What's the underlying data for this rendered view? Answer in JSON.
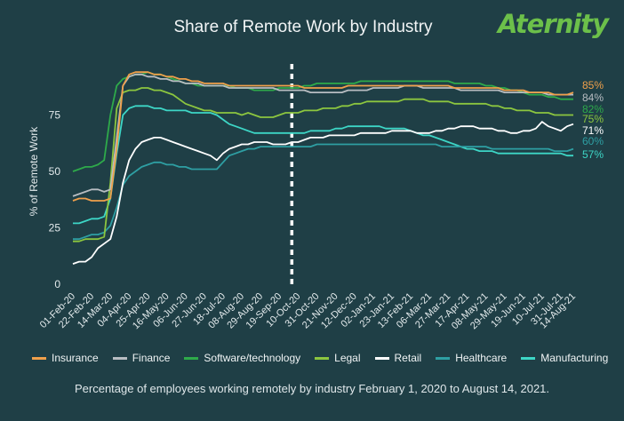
{
  "header": {
    "title": "Share of Remote Work by Industry",
    "brand": "Aternity"
  },
  "caption": "Percentage of employees working remotely by industry February 1, 2020 to August 14, 2021.",
  "chart_data": {
    "type": "line",
    "title": "Share of Remote Work by Industry",
    "ylabel": "% of Remote Work",
    "xlabel": "",
    "ylim": [
      0,
      100
    ],
    "yticks": [
      0,
      25,
      50,
      75
    ],
    "grid": false,
    "legend": "bottom",
    "marker_index": 35,
    "x_tick_labels": [
      "01-Feb-20",
      "22-Feb-20",
      "14-Mar-20",
      "04-Apr-20",
      "25-Apr-20",
      "16-May-20",
      "06-Jun-20",
      "27-Jun-20",
      "18-Jul-20",
      "08-Aug-20",
      "29-Aug-20",
      "19-Sep-20",
      "10-Oct-20",
      "31-Oct-20",
      "21-Nov-20",
      "12-Dec-20",
      "02-Jan-21",
      "23-Jan-21",
      "13-Feb-21",
      "06-Mar-21",
      "27-Mar-21",
      "17-Apr-21",
      "08-May-21",
      "29-May-21",
      "19-Jun-21",
      "10-Jul-21",
      "31-Jul-21",
      "14-Aug-21"
    ],
    "x_tick_positions": [
      0,
      3,
      6,
      9,
      12,
      15,
      18,
      21,
      24,
      27,
      30,
      33,
      36,
      39,
      42,
      45,
      48,
      51,
      54,
      57,
      60,
      63,
      66,
      69,
      72,
      75,
      78,
      80
    ],
    "series": [
      {
        "name": "Insurance",
        "color": "#f0a04b",
        "end_label": "85%",
        "values": [
          37,
          38,
          38,
          37,
          37,
          37,
          38,
          60,
          88,
          93,
          94,
          94,
          94,
          93,
          93,
          92,
          92,
          91,
          91,
          90,
          90,
          89,
          89,
          89,
          89,
          88,
          88,
          88,
          88,
          88,
          88,
          88,
          88,
          88,
          88,
          88,
          88,
          87,
          87,
          87,
          87,
          87,
          87,
          87,
          88,
          88,
          88,
          88,
          88,
          88,
          88,
          88,
          88,
          88,
          88,
          88,
          88,
          88,
          88,
          88,
          88,
          87,
          87,
          87,
          87,
          87,
          87,
          87,
          87,
          86,
          86,
          86,
          86,
          85,
          85,
          85,
          85,
          84,
          84,
          84,
          85
        ]
      },
      {
        "name": "Finance",
        "color": "#b8bdc2",
        "end_label": "84%",
        "values": [
          39,
          40,
          41,
          42,
          42,
          41,
          42,
          65,
          88,
          92,
          93,
          93,
          92,
          92,
          91,
          91,
          90,
          90,
          89,
          89,
          89,
          88,
          88,
          88,
          88,
          87,
          87,
          87,
          87,
          87,
          87,
          87,
          87,
          86,
          86,
          86,
          86,
          86,
          85,
          85,
          85,
          85,
          85,
          85,
          86,
          86,
          86,
          86,
          87,
          87,
          87,
          87,
          87,
          88,
          88,
          88,
          87,
          87,
          87,
          87,
          87,
          87,
          86,
          86,
          86,
          86,
          86,
          86,
          86,
          85,
          85,
          85,
          85,
          85,
          85,
          85,
          84,
          84,
          84,
          84,
          84
        ]
      },
      {
        "name": "Software/technology",
        "color": "#2eaa4a",
        "end_label": "82%",
        "values": [
          50,
          51,
          52,
          52,
          53,
          55,
          75,
          88,
          91,
          92,
          93,
          93,
          94,
          93,
          93,
          92,
          91,
          90,
          89,
          89,
          88,
          88,
          88,
          88,
          88,
          88,
          87,
          87,
          87,
          86,
          86,
          86,
          86,
          87,
          87,
          87,
          87,
          88,
          88,
          89,
          89,
          89,
          89,
          89,
          89,
          89,
          90,
          90,
          90,
          90,
          90,
          90,
          90,
          90,
          90,
          90,
          90,
          90,
          90,
          90,
          90,
          89,
          89,
          89,
          89,
          89,
          88,
          88,
          87,
          87,
          86,
          86,
          85,
          84,
          84,
          84,
          83,
          83,
          82,
          82,
          82
        ]
      },
      {
        "name": "Legal",
        "color": "#8cc63f",
        "end_label": "75%",
        "values": [
          19,
          19,
          20,
          20,
          20,
          21,
          45,
          78,
          85,
          86,
          86,
          87,
          87,
          86,
          86,
          85,
          84,
          82,
          80,
          79,
          78,
          77,
          77,
          76,
          76,
          76,
          76,
          75,
          76,
          75,
          74,
          74,
          74,
          75,
          76,
          76,
          76,
          77,
          77,
          77,
          78,
          78,
          78,
          79,
          79,
          80,
          80,
          81,
          81,
          81,
          81,
          81,
          81,
          82,
          82,
          82,
          82,
          81,
          81,
          81,
          81,
          80,
          80,
          80,
          80,
          80,
          80,
          79,
          79,
          78,
          78,
          77,
          77,
          77,
          76,
          76,
          76,
          75,
          75,
          75,
          75
        ]
      },
      {
        "name": "Retail",
        "color": "#ffffff",
        "end_label": "71%",
        "values": [
          9,
          10,
          10,
          12,
          16,
          18,
          20,
          30,
          45,
          55,
          60,
          63,
          64,
          65,
          65,
          64,
          63,
          62,
          61,
          60,
          59,
          58,
          57,
          55,
          58,
          60,
          61,
          62,
          62,
          63,
          63,
          63,
          62,
          62,
          62,
          63,
          63,
          64,
          65,
          65,
          65,
          66,
          66,
          66,
          66,
          66,
          67,
          67,
          67,
          67,
          67,
          68,
          68,
          68,
          68,
          67,
          67,
          67,
          68,
          68,
          69,
          69,
          70,
          70,
          70,
          69,
          69,
          69,
          68,
          68,
          67,
          67,
          68,
          68,
          69,
          72,
          70,
          69,
          68,
          70,
          71
        ]
      },
      {
        "name": "Healthcare",
        "color": "#2e9fa3",
        "end_label": "60%",
        "values": [
          20,
          20,
          21,
          22,
          22,
          23,
          26,
          34,
          44,
          48,
          50,
          52,
          53,
          54,
          54,
          53,
          53,
          52,
          52,
          51,
          51,
          51,
          51,
          51,
          54,
          57,
          58,
          59,
          60,
          60,
          61,
          61,
          61,
          61,
          61,
          61,
          61,
          61,
          61,
          62,
          62,
          62,
          62,
          62,
          62,
          62,
          62,
          62,
          62,
          62,
          62,
          62,
          62,
          62,
          62,
          62,
          62,
          62,
          62,
          61,
          61,
          61,
          61,
          61,
          61,
          61,
          61,
          60,
          60,
          60,
          60,
          60,
          60,
          60,
          60,
          60,
          60,
          59,
          59,
          59,
          60
        ]
      },
      {
        "name": "Manufacturing",
        "color": "#3dd6c6",
        "end_label": "57%",
        "values": [
          27,
          27,
          28,
          29,
          29,
          30,
          38,
          58,
          75,
          78,
          79,
          79,
          79,
          78,
          78,
          77,
          77,
          77,
          77,
          76,
          76,
          76,
          76,
          75,
          73,
          71,
          70,
          69,
          68,
          67,
          67,
          67,
          67,
          67,
          67,
          67,
          67,
          67,
          68,
          68,
          68,
          68,
          69,
          69,
          70,
          70,
          70,
          70,
          70,
          70,
          69,
          69,
          69,
          69,
          68,
          67,
          66,
          66,
          65,
          64,
          63,
          62,
          61,
          60,
          60,
          59,
          59,
          59,
          58,
          58,
          58,
          58,
          58,
          58,
          58,
          58,
          58,
          58,
          58,
          57,
          57
        ]
      }
    ]
  }
}
